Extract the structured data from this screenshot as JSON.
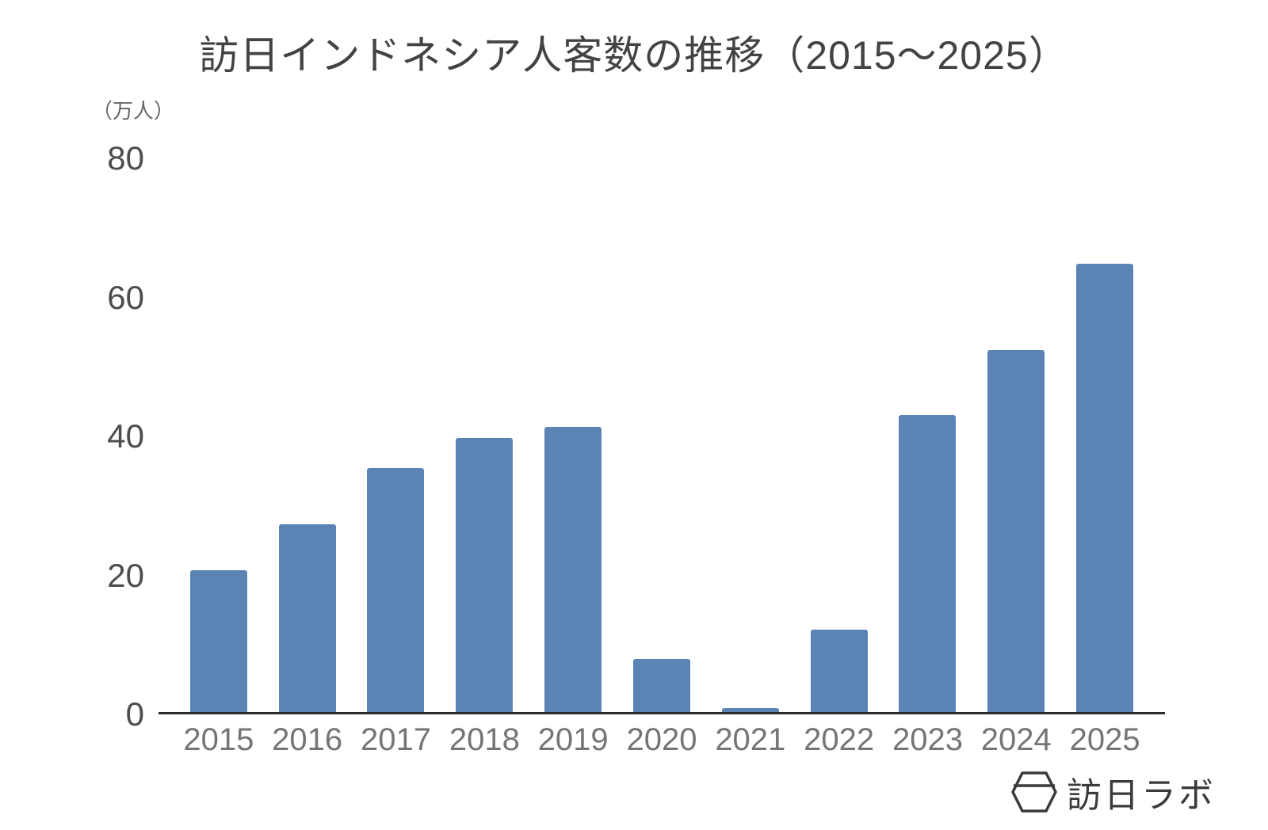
{
  "chart_data": {
    "type": "bar",
    "title": "訪日インドネシア人客数の推移（2015～2025）",
    "ylabel": "（万人）",
    "xlabel": "",
    "categories": [
      "2015",
      "2016",
      "2017",
      "2018",
      "2019",
      "2020",
      "2021",
      "2022",
      "2023",
      "2024",
      "2025"
    ],
    "values": [
      20.5,
      27.1,
      35.2,
      39.6,
      41.2,
      7.7,
      0.6,
      11.9,
      42.9,
      52.3,
      64.8
    ],
    "ylim": [
      0,
      80
    ],
    "yticks": [
      0,
      20,
      40,
      60,
      80
    ],
    "grid": false,
    "legend_position": "none",
    "bar_color": "#5b84b5",
    "axis_line_color": "#2b2b2b"
  },
  "branding": {
    "logo_text": "訪日ラボ",
    "logo_icon": "hexagon-lantern-icon"
  }
}
